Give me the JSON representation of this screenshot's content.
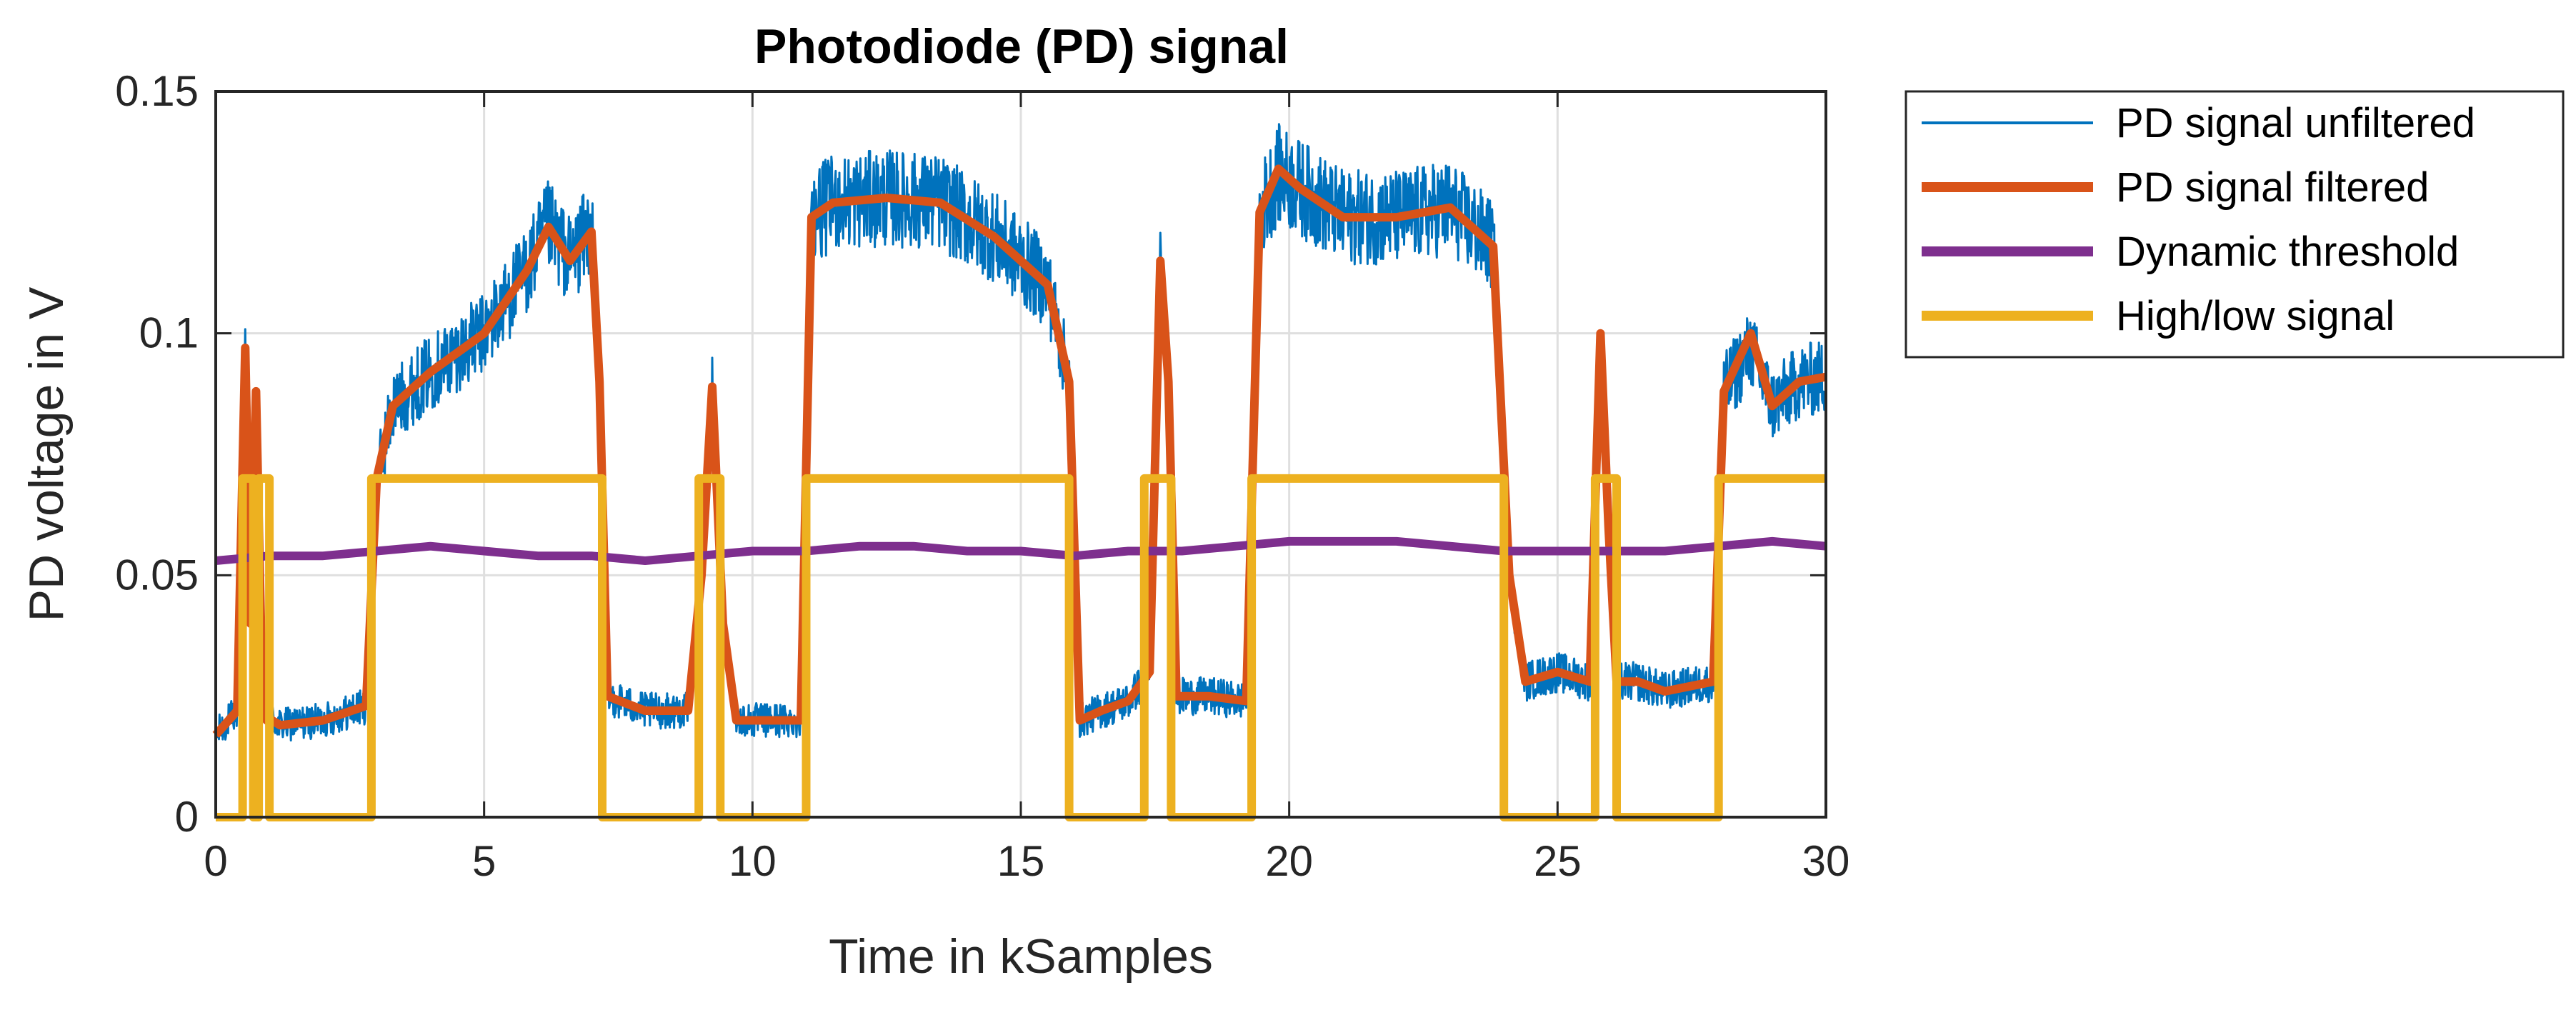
{
  "chart_data": {
    "type": "line",
    "title": "Photodiode (PD) signal",
    "xlabel": "Time in kSamples",
    "ylabel": "PD voltage in V",
    "xlim": [
      0,
      30
    ],
    "ylim": [
      0,
      0.15
    ],
    "xticks": [
      0,
      5,
      10,
      15,
      20,
      25,
      30
    ],
    "xtick_labels": [
      "0",
      "5",
      "10",
      "15",
      "20",
      "25",
      "30"
    ],
    "yticks": [
      0,
      0.05,
      0.1,
      0.15
    ],
    "ytick_labels": [
      "0",
      "0.05",
      "0.1",
      "0.15"
    ],
    "grid": true,
    "legend_position": "outside-top-right",
    "series": [
      {
        "name": "PD signal unfiltered",
        "color": "#0072BD",
        "style": "thin-noisy",
        "noise_amplitude": 0.006,
        "x": [
          0,
          0.4,
          0.55,
          0.65,
          0.75,
          0.85,
          0.95,
          1.05,
          1.2,
          2.0,
          2.8,
          3.0,
          3.3,
          4.0,
          5.0,
          5.8,
          6.2,
          6.6,
          7.0,
          7.15,
          7.3,
          8.0,
          8.8,
          9.05,
          9.25,
          9.45,
          9.7,
          10.5,
          10.9,
          11.1,
          11.5,
          12.5,
          13.5,
          14.5,
          15.5,
          15.9,
          16.1,
          16.5,
          17.0,
          17.4,
          17.6,
          17.75,
          17.9,
          18.5,
          19.2,
          19.45,
          19.8,
          20.2,
          21.0,
          22.0,
          23.0,
          23.8,
          24.1,
          24.4,
          25.0,
          25.6,
          25.8,
          25.95,
          26.1,
          26.5,
          27.0,
          27.9,
          28.1,
          28.6,
          29.0,
          29.5,
          30.0
        ],
        "values": [
          0.017,
          0.022,
          0.097,
          0.04,
          0.085,
          0.035,
          0.02,
          0.02,
          0.019,
          0.02,
          0.023,
          0.07,
          0.085,
          0.092,
          0.1,
          0.113,
          0.122,
          0.115,
          0.122,
          0.09,
          0.025,
          0.022,
          0.022,
          0.05,
          0.088,
          0.04,
          0.02,
          0.02,
          0.02,
          0.124,
          0.127,
          0.128,
          0.127,
          0.12,
          0.11,
          0.09,
          0.02,
          0.022,
          0.024,
          0.03,
          0.112,
          0.09,
          0.025,
          0.025,
          0.024,
          0.125,
          0.133,
          0.13,
          0.124,
          0.124,
          0.126,
          0.118,
          0.05,
          0.028,
          0.03,
          0.028,
          0.096,
          0.06,
          0.028,
          0.028,
          0.026,
          0.028,
          0.088,
          0.097,
          0.085,
          0.09,
          0.091
        ]
      },
      {
        "name": "PD signal filtered",
        "color": "#D95319",
        "style": "thick",
        "x": [
          0,
          0.4,
          0.55,
          0.65,
          0.75,
          0.85,
          0.95,
          1.05,
          1.2,
          2.0,
          2.8,
          3.0,
          3.3,
          4.0,
          5.0,
          5.8,
          6.2,
          6.6,
          7.0,
          7.15,
          7.3,
          8.0,
          8.8,
          9.05,
          9.25,
          9.45,
          9.7,
          10.5,
          10.9,
          11.1,
          11.5,
          12.5,
          13.5,
          14.5,
          15.5,
          15.9,
          16.1,
          16.5,
          17.0,
          17.4,
          17.6,
          17.75,
          17.9,
          18.5,
          19.2,
          19.45,
          19.8,
          20.2,
          21.0,
          22.0,
          23.0,
          23.8,
          24.1,
          24.4,
          25.0,
          25.6,
          25.8,
          25.95,
          26.1,
          26.5,
          27.0,
          27.9,
          28.1,
          28.6,
          29.0,
          29.5,
          30.0
        ],
        "values": [
          0.017,
          0.022,
          0.097,
          0.04,
          0.088,
          0.035,
          0.02,
          0.02,
          0.019,
          0.02,
          0.023,
          0.07,
          0.085,
          0.092,
          0.1,
          0.113,
          0.122,
          0.115,
          0.121,
          0.09,
          0.025,
          0.022,
          0.022,
          0.05,
          0.089,
          0.04,
          0.02,
          0.02,
          0.02,
          0.124,
          0.127,
          0.128,
          0.127,
          0.12,
          0.11,
          0.09,
          0.02,
          0.022,
          0.024,
          0.03,
          0.115,
          0.09,
          0.025,
          0.025,
          0.024,
          0.125,
          0.134,
          0.13,
          0.124,
          0.124,
          0.126,
          0.118,
          0.05,
          0.028,
          0.03,
          0.028,
          0.1,
          0.06,
          0.028,
          0.028,
          0.026,
          0.028,
          0.088,
          0.1,
          0.085,
          0.09,
          0.091
        ]
      },
      {
        "name": "Dynamic threshold",
        "color": "#7E2F8E",
        "style": "thick",
        "x": [
          0,
          1,
          2,
          3,
          4,
          5,
          6,
          7,
          8,
          9,
          10,
          11,
          12,
          13,
          14,
          15,
          16,
          17,
          18,
          19,
          20,
          21,
          22,
          23,
          24,
          25,
          26,
          27,
          28,
          29,
          30
        ],
        "values": [
          0.053,
          0.054,
          0.054,
          0.055,
          0.056,
          0.055,
          0.054,
          0.054,
          0.053,
          0.054,
          0.055,
          0.055,
          0.056,
          0.056,
          0.055,
          0.055,
          0.054,
          0.055,
          0.055,
          0.056,
          0.057,
          0.057,
          0.057,
          0.056,
          0.055,
          0.055,
          0.055,
          0.055,
          0.056,
          0.057,
          0.056
        ]
      },
      {
        "name": "High/low signal",
        "color": "#EDB120",
        "style": "thick-step",
        "x": [
          0,
          0.5,
          0.5,
          0.7,
          0.7,
          0.8,
          0.8,
          1.0,
          1.0,
          2.9,
          2.9,
          7.2,
          7.2,
          9.0,
          9.0,
          9.4,
          9.4,
          11.0,
          11.0,
          15.9,
          15.9,
          17.3,
          17.3,
          17.8,
          17.8,
          19.3,
          19.3,
          24.0,
          24.0,
          25.7,
          25.7,
          26.1,
          26.1,
          28.0,
          28.0,
          30.0
        ],
        "values": [
          0,
          0,
          0.07,
          0.07,
          0,
          0,
          0.07,
          0.07,
          0,
          0,
          0.07,
          0.07,
          0,
          0,
          0.07,
          0.07,
          0,
          0,
          0.07,
          0.07,
          0,
          0,
          0.07,
          0.07,
          0,
          0,
          0.07,
          0.07,
          0,
          0,
          0.07,
          0.07,
          0,
          0,
          0.07,
          0.07
        ]
      }
    ]
  }
}
